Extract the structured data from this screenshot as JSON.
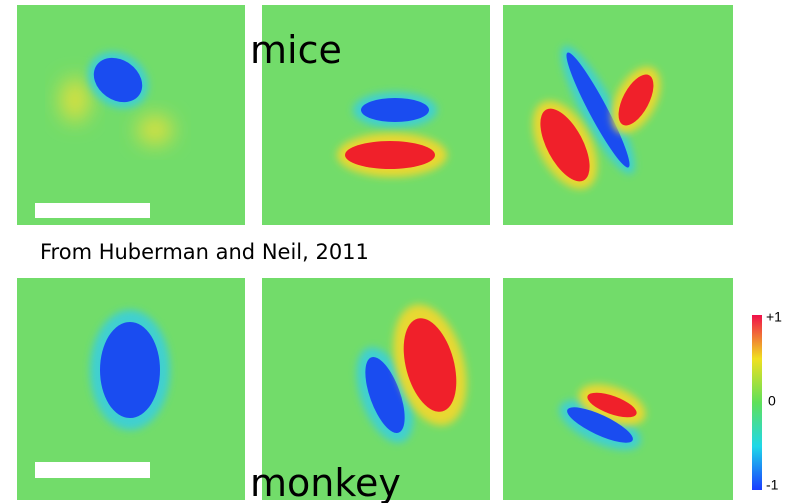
{
  "labels": {
    "top": "mice",
    "caption": "From Huberman and Neil, 2011",
    "bottom": "monkey"
  },
  "colorbar": {
    "labels": [
      "+1",
      "0",
      "-1"
    ]
  }
}
